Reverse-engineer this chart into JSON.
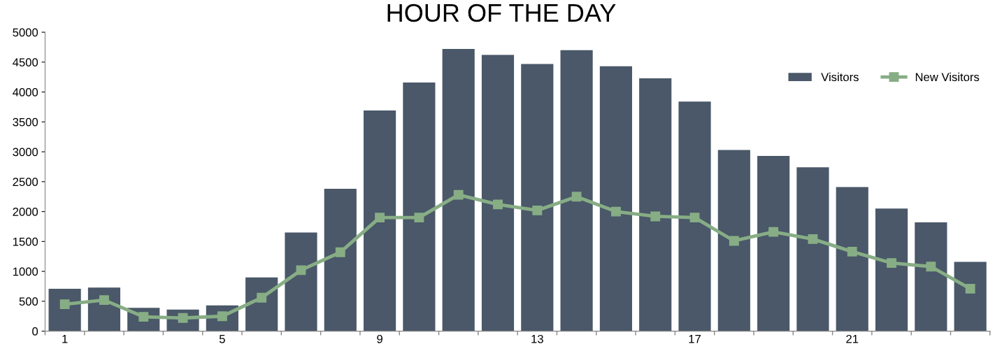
{
  "chart_data": {
    "type": "bar",
    "title": "HOUR OF THE DAY",
    "categories": [
      "1",
      null,
      null,
      null,
      "5",
      null,
      null,
      null,
      "9",
      null,
      null,
      null,
      "13",
      null,
      null,
      null,
      "17",
      null,
      null,
      null,
      "21",
      null,
      null,
      null
    ],
    "series": [
      {
        "name": "Visitors",
        "color": "#4a5869",
        "values": [
          710,
          730,
          390,
          360,
          430,
          900,
          1650,
          2380,
          3690,
          4160,
          4720,
          4620,
          4470,
          4700,
          4430,
          4230,
          3840,
          3030,
          2930,
          2740,
          2410,
          2050,
          1820,
          1160
        ]
      },
      {
        "name": "New Visitors",
        "type": "line",
        "color": "#87ad85",
        "marker": "square",
        "values": [
          450,
          520,
          240,
          220,
          250,
          560,
          1020,
          1320,
          1900,
          1900,
          2280,
          2120,
          2020,
          2250,
          2000,
          1920,
          1900,
          1510,
          1660,
          1540,
          1330,
          1140,
          1080,
          710
        ]
      }
    ],
    "ylim": [
      0,
      5000
    ],
    "yticks": [
      0,
      500,
      1000,
      1500,
      2000,
      2500,
      3000,
      3500,
      4000,
      4500,
      5000
    ],
    "grid": false,
    "legend": "top right"
  }
}
